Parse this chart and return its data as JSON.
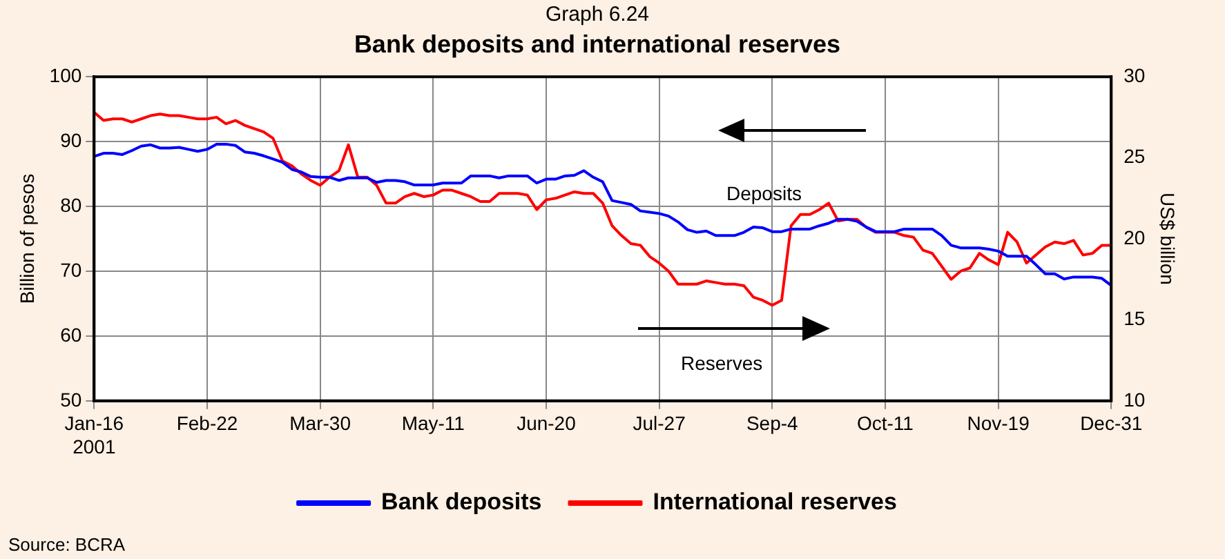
{
  "chart_data": {
    "type": "line",
    "title": "Graph 6.24",
    "subtitle": "Bank deposits and international reserves",
    "ylabel": "Billion of pesos",
    "y2label": "US$ billion",
    "annotations": [
      "Deposits",
      "Reserves",
      "Source: BCRA"
    ],
    "categories": [
      "Jan-16\n2001",
      null,
      null,
      null,
      null,
      null,
      null,
      null,
      null,
      null,
      null,
      null,
      "Feb-22",
      null,
      null,
      null,
      null,
      null,
      null,
      null,
      null,
      null,
      null,
      null,
      "Mar-30",
      null,
      null,
      null,
      null,
      null,
      null,
      null,
      null,
      null,
      null,
      null,
      "May-11",
      null,
      null,
      null,
      null,
      null,
      null,
      null,
      null,
      null,
      null,
      null,
      "Jun-20",
      null,
      null,
      null,
      null,
      null,
      null,
      null,
      null,
      null,
      null,
      null,
      "Jul-27",
      null,
      null,
      null,
      null,
      null,
      null,
      null,
      null,
      null,
      null,
      null,
      "Sep-4",
      null,
      null,
      null,
      null,
      null,
      null,
      null,
      null,
      null,
      null,
      null,
      "Oct-11",
      null,
      null,
      null,
      null,
      null,
      null,
      null,
      null,
      null,
      null,
      null,
      "Nov-19",
      null,
      null,
      null,
      null,
      null,
      null,
      null,
      null,
      null,
      null,
      null,
      "Dec-31"
    ],
    "series": [
      {
        "name": "Bank deposits",
        "color": "#0000ff",
        "values": [
          87.7,
          88.2,
          88.2,
          88.0,
          88.6,
          89.3,
          89.5,
          89.0,
          89.0,
          89.1,
          88.8,
          88.5,
          88.8,
          89.6,
          89.6,
          89.4,
          88.4,
          88.2,
          87.8,
          87.3,
          86.8,
          85.7,
          85.3,
          84.6,
          84.5,
          84.5,
          84.0,
          84.4,
          84.4,
          84.4,
          83.7,
          84.0,
          84.0,
          83.8,
          83.3,
          83.3,
          83.3,
          83.6,
          83.6,
          83.6,
          84.7,
          84.7,
          84.7,
          84.4,
          84.7,
          84.7,
          84.7,
          83.6,
          84.2,
          84.2,
          84.7,
          84.8,
          85.5,
          84.5,
          83.8,
          80.9,
          80.6,
          80.3,
          79.3,
          79.1,
          78.9,
          78.5,
          77.6,
          76.4,
          76.0,
          76.2,
          75.5,
          75.5,
          75.5,
          76.0,
          76.8,
          76.7,
          76.1,
          76.1,
          76.5,
          76.5,
          76.5,
          77.0,
          77.4,
          78.0,
          78.0,
          77.7,
          76.8,
          76.1,
          76.1,
          76.1,
          76.5,
          76.5,
          76.5,
          76.5,
          75.5,
          74.0,
          73.6,
          73.6,
          73.6,
          73.4,
          73.1,
          72.3,
          72.3,
          72.3,
          71.0,
          69.6,
          69.6,
          68.8,
          69.1,
          69.1,
          69.1,
          68.9,
          67.8
        ]
      },
      {
        "name": "International reserves",
        "color": "#ff0000",
        "axis": "y2",
        "values": [
          27.8,
          27.3,
          27.4,
          27.4,
          27.2,
          27.4,
          27.6,
          27.7,
          27.6,
          27.6,
          27.5,
          27.4,
          27.4,
          27.5,
          27.1,
          27.3,
          27.0,
          26.8,
          26.6,
          26.2,
          24.8,
          24.5,
          24.0,
          23.6,
          23.3,
          23.8,
          24.2,
          25.8,
          23.8,
          23.8,
          23.3,
          22.2,
          22.2,
          22.6,
          22.8,
          22.6,
          22.7,
          23.0,
          23.0,
          22.8,
          22.6,
          22.3,
          22.3,
          22.8,
          22.8,
          22.8,
          22.7,
          21.8,
          22.4,
          22.5,
          22.7,
          22.9,
          22.8,
          22.8,
          22.2,
          20.8,
          20.2,
          19.7,
          19.6,
          18.9,
          18.5,
          18.0,
          17.2,
          17.2,
          17.2,
          17.4,
          17.3,
          17.2,
          17.2,
          17.1,
          16.4,
          16.2,
          15.9,
          16.2,
          20.8,
          21.5,
          21.5,
          21.8,
          22.2,
          21.1,
          21.2,
          21.2,
          20.7,
          20.4,
          20.4,
          20.4,
          20.2,
          20.1,
          19.3,
          19.1,
          18.3,
          17.5,
          18.0,
          18.2,
          19.1,
          18.7,
          18.4,
          20.4,
          19.8,
          18.5,
          19.0,
          19.5,
          19.8,
          19.7,
          19.9,
          19.0,
          19.1,
          19.6,
          19.6
        ]
      }
    ],
    "ylim": [
      50,
      100
    ],
    "yticks": [
      50,
      60,
      70,
      80,
      90,
      100
    ],
    "y2lim": [
      10,
      30
    ],
    "y2ticks": [
      10,
      15,
      20,
      25,
      30
    ],
    "grid": true,
    "legend": "bottom",
    "marker": "none"
  }
}
